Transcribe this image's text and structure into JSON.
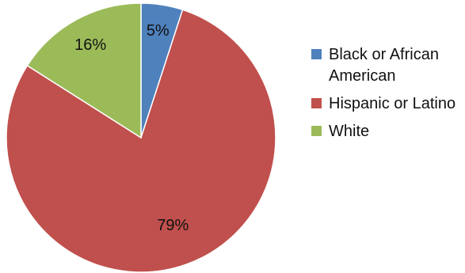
{
  "chart_data": {
    "type": "pie",
    "categories": [
      "Black or African American",
      "Hispanic or Latino",
      "White"
    ],
    "values": [
      5,
      79,
      16
    ],
    "labels": [
      "5%",
      "79%",
      "16%"
    ],
    "colors": [
      "#4f81bd",
      "#c0504d",
      "#9bbb59"
    ],
    "legend_placement": "right",
    "start_angle": "12 o'clock, clockwise"
  }
}
